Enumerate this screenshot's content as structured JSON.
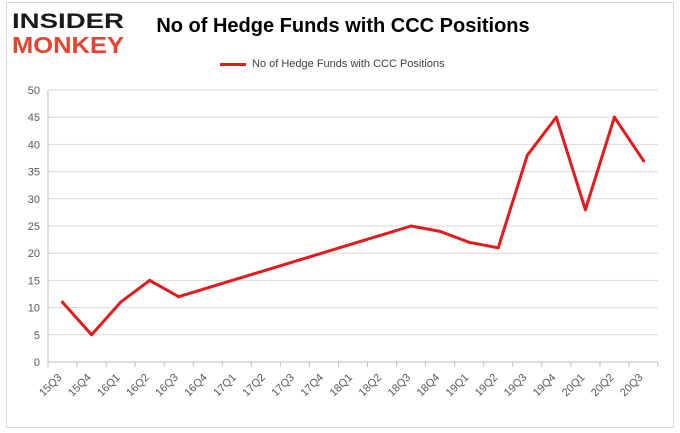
{
  "logo": {
    "line1": "INSIDER",
    "line2": "MONKEY",
    "colors": {
      "dark": "#1a1a1a",
      "accent": "#e8432f"
    }
  },
  "chart_data": {
    "type": "line",
    "title": "No of Hedge Funds with CCC Positions",
    "legend": "No of Hedge Funds with CCC Positions",
    "legend_position": "top",
    "categories": [
      "15Q3",
      "15Q4",
      "16Q1",
      "16Q2",
      "16Q3",
      "16Q4",
      "17Q1",
      "17Q2",
      "17Q3",
      "17Q4",
      "18Q1",
      "18Q2",
      "18Q3",
      "18Q4",
      "19Q1",
      "19Q2",
      "19Q3",
      "19Q4",
      "20Q1",
      "20Q2",
      "20Q3"
    ],
    "series": [
      {
        "name": "No of Hedge Funds with CCC Positions",
        "color": "#e41a1c",
        "values": [
          11,
          5,
          11,
          15,
          12,
          null,
          null,
          null,
          null,
          null,
          null,
          null,
          25,
          24,
          22,
          21,
          38,
          45,
          28,
          45,
          37
        ]
      }
    ],
    "ylim": [
      0,
      50
    ],
    "yticks": [
      0,
      5,
      10,
      15,
      20,
      25,
      30,
      35,
      40,
      45,
      50
    ],
    "grid": true,
    "xlabel": "",
    "ylabel": ""
  }
}
